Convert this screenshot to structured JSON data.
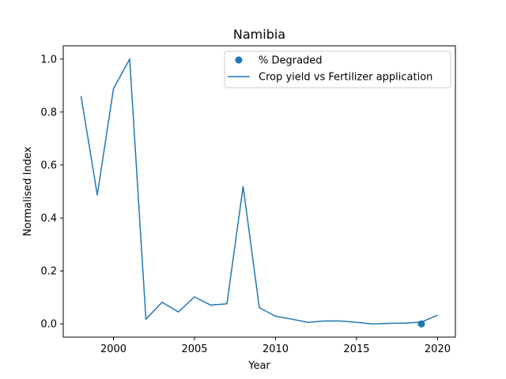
{
  "chart_data": {
    "type": "line",
    "title": "Namibia",
    "xlabel": "Year",
    "ylabel": "Normalised Index",
    "xlim": [
      1996.9,
      2021.1
    ],
    "ylim": [
      -0.05,
      1.05
    ],
    "xticks": [
      2000,
      2005,
      2010,
      2015,
      2020
    ],
    "yticks": [
      0.0,
      0.2,
      0.4,
      0.6,
      0.8,
      1.0
    ],
    "grid": false,
    "legend_position": "top-right",
    "series": [
      {
        "name": "% Degraded",
        "kind": "scatter",
        "color": "#1f77b4",
        "points": [
          {
            "x": 2019,
            "y": 0.0
          }
        ]
      },
      {
        "name": "Crop yield vs Fertilizer application",
        "kind": "line",
        "color": "#1f77b4",
        "points": [
          {
            "x": 1998,
            "y": 0.86
          },
          {
            "x": 1999,
            "y": 0.487
          },
          {
            "x": 2000,
            "y": 0.888
          },
          {
            "x": 2001,
            "y": 1.0
          },
          {
            "x": 2002,
            "y": 0.018
          },
          {
            "x": 2003,
            "y": 0.082
          },
          {
            "x": 2004,
            "y": 0.045
          },
          {
            "x": 2005,
            "y": 0.102
          },
          {
            "x": 2006,
            "y": 0.071
          },
          {
            "x": 2007,
            "y": 0.076
          },
          {
            "x": 2008,
            "y": 0.519
          },
          {
            "x": 2009,
            "y": 0.061
          },
          {
            "x": 2010,
            "y": 0.029
          },
          {
            "x": 2011,
            "y": 0.018
          },
          {
            "x": 2012,
            "y": 0.006
          },
          {
            "x": 2013,
            "y": 0.011
          },
          {
            "x": 2014,
            "y": 0.011
          },
          {
            "x": 2015,
            "y": 0.006
          },
          {
            "x": 2016,
            "y": 0.0
          },
          {
            "x": 2017,
            "y": 0.002
          },
          {
            "x": 2018,
            "y": 0.003
          },
          {
            "x": 2019,
            "y": 0.007
          },
          {
            "x": 2020,
            "y": 0.033
          }
        ]
      }
    ]
  }
}
